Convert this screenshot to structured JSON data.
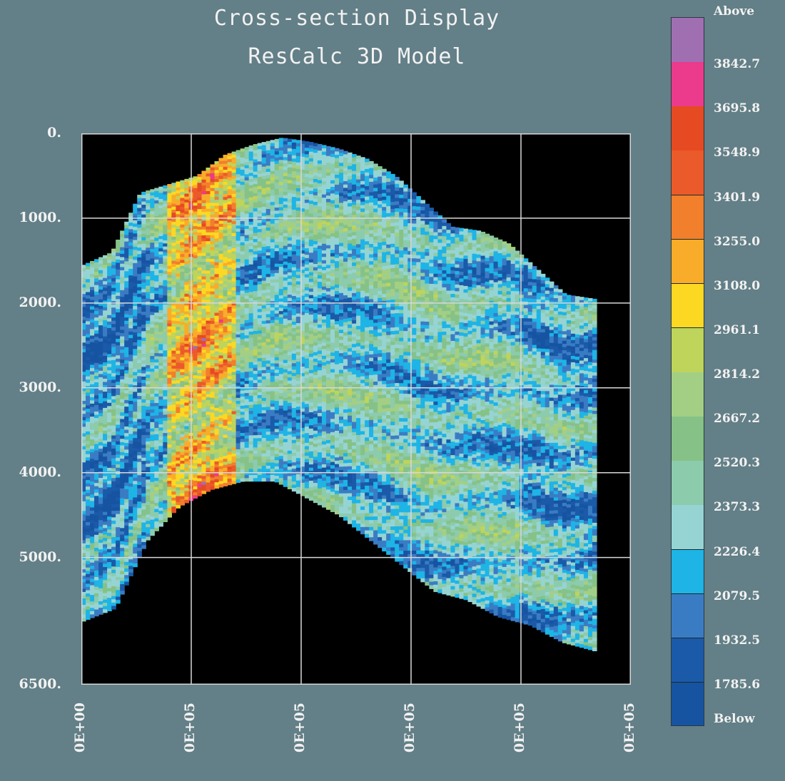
{
  "chart_data": {
    "type": "heatmap",
    "title": "Cross-section Display",
    "subtitle": "ResCalc 3D Model",
    "xlabel": "",
    "ylabel": "",
    "y_axis": {
      "reversed": true,
      "ylim": [
        0,
        6500
      ],
      "tick_values": [
        0,
        1000,
        2000,
        3000,
        4000,
        5000,
        6500
      ],
      "tick_labels": [
        "0.",
        "1000.",
        "2000.",
        "3000.",
        "4000.",
        "5000.",
        "6500."
      ]
    },
    "x_axis": {
      "tick_labels": [
        "0E+00",
        "0E+05",
        "0E+05",
        "0E+05",
        "0E+05",
        "0E+05"
      ]
    },
    "grid": true,
    "section_top_depth": [
      1550,
      1400,
      700,
      600,
      500,
      250,
      130,
      50,
      100,
      180,
      300,
      500,
      800,
      1100,
      1150,
      1300,
      1600,
      1900,
      1950
    ],
    "section_bottom_depth": [
      5750,
      5600,
      4800,
      4400,
      4200,
      4100,
      4100,
      4300,
      4500,
      4800,
      5100,
      5400,
      5500,
      5700,
      5800,
      6000,
      6100
    ],
    "colorbar": {
      "placement": "right",
      "boundaries": [
        "Above",
        "3842.7",
        "3695.8",
        "3548.9",
        "3401.9",
        "3255.0",
        "3108.0",
        "2961.1",
        "2814.2",
        "2667.2",
        "2520.3",
        "2373.3",
        "2226.4",
        "2079.5",
        "1932.5",
        "1785.6",
        "Below"
      ],
      "colors": [
        "#a06fb2",
        "#ec3a8c",
        "#e64a22",
        "#eb5a2a",
        "#f17f2c",
        "#f9ac2a",
        "#fcd823",
        "#bed45b",
        "#a3cf85",
        "#86c287",
        "#8dcbad",
        "#96d4d4",
        "#1eb4e6",
        "#3a7cc4",
        "#1a5aa8",
        "#1654a2"
      ]
    }
  }
}
